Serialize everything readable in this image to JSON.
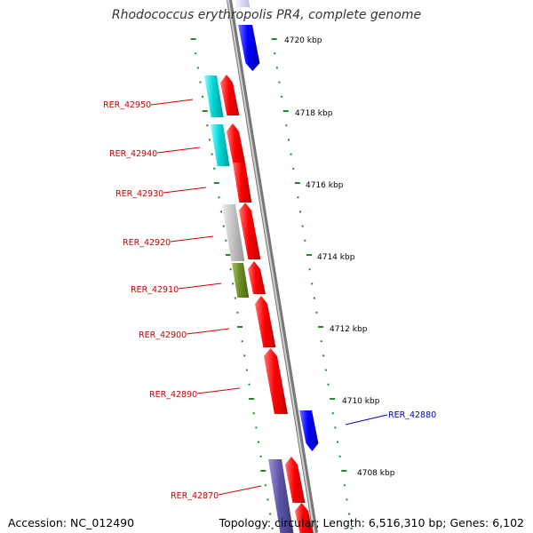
{
  "title": "Rhodococcus erythropolis PR4, complete genome",
  "footer": {
    "accession_label": "Accession:",
    "accession": "NC_012490",
    "topology_label": "Topology:",
    "topology": "circular;",
    "length_label": "Length:",
    "length": "6,516,310 bp;",
    "genes_label": "Genes:",
    "genes": "6,102"
  },
  "colors": {
    "red": "#ff0000",
    "blue": "#0000ff",
    "cyan": "#00cccc",
    "grey": "#bbbbbb",
    "olive": "#6b8e23",
    "purple": "#5c56a6",
    "tick": "#1e8c1e",
    "label_red": "#cc0000",
    "label_blue": "#0000cc",
    "backbone": "#888888"
  },
  "tick_labels": [
    "4720 kbp",
    "4718 kbp",
    "4716 kbp",
    "4714 kbp",
    "4712 kbp",
    "4710 kbp",
    "4708 kbp"
  ],
  "gene_labels": [
    {
      "id": "RER_42950",
      "color": "red"
    },
    {
      "id": "RER_42940",
      "color": "red"
    },
    {
      "id": "RER_42930",
      "color": "red"
    },
    {
      "id": "RER_42920",
      "color": "red"
    },
    {
      "id": "RER_42910",
      "color": "red"
    },
    {
      "id": "RER_42900",
      "color": "red"
    },
    {
      "id": "RER_42890",
      "color": "red"
    },
    {
      "id": "RER_42880",
      "color": "blue"
    },
    {
      "id": "RER_42870",
      "color": "red"
    }
  ]
}
